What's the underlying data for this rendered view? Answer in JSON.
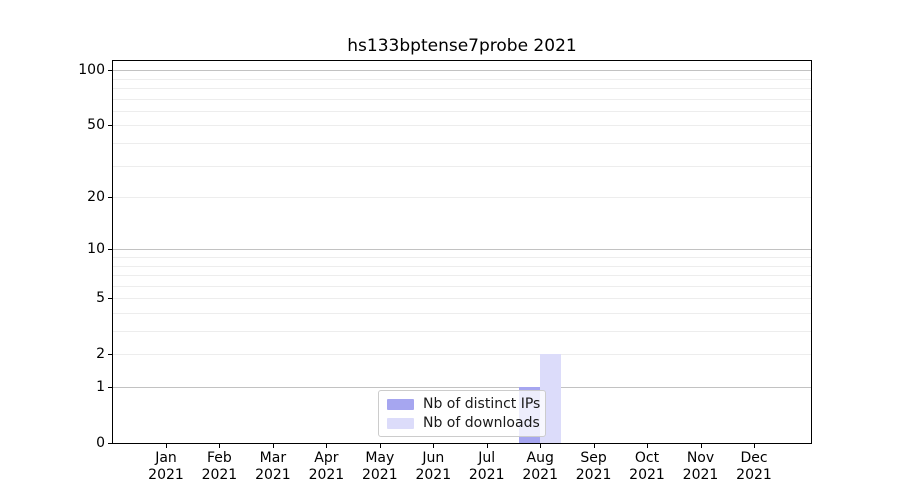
{
  "chart_data": {
    "type": "bar",
    "title": "hs133bptense7probe 2021",
    "categories": [
      "Jan 2021",
      "Feb 2021",
      "Mar 2021",
      "Apr 2021",
      "May 2021",
      "Jun 2021",
      "Jul 2021",
      "Aug 2021",
      "Sep 2021",
      "Oct 2021",
      "Nov 2021",
      "Dec 2021"
    ],
    "series": [
      {
        "name": "Nb of distinct IPs",
        "color": "#a6a6f0",
        "values": [
          0,
          0,
          0,
          0,
          0,
          0,
          0,
          1,
          0,
          0,
          0,
          0
        ]
      },
      {
        "name": "Nb of downloads",
        "color": "#dcdcfa",
        "values": [
          0,
          0,
          0,
          0,
          0,
          0,
          0,
          2,
          0,
          0,
          0,
          0
        ]
      }
    ],
    "xlabel": "",
    "ylabel": "",
    "yscale": "log1p",
    "ylim": [
      0,
      112
    ],
    "yticks": [
      0,
      1,
      2,
      5,
      10,
      20,
      50,
      100
    ],
    "gridlines": {
      "major": [
        1,
        10,
        100
      ],
      "minor": [
        2,
        3,
        4,
        5,
        6,
        7,
        8,
        9,
        20,
        30,
        40,
        50,
        60,
        70,
        80,
        90
      ]
    },
    "legend_position": "lower center",
    "grid": "horizontal",
    "colors": {
      "grid_major": "#c2c2c2",
      "grid_minor": "#ededed",
      "axis": "#000000",
      "background": "#ffffff"
    }
  }
}
